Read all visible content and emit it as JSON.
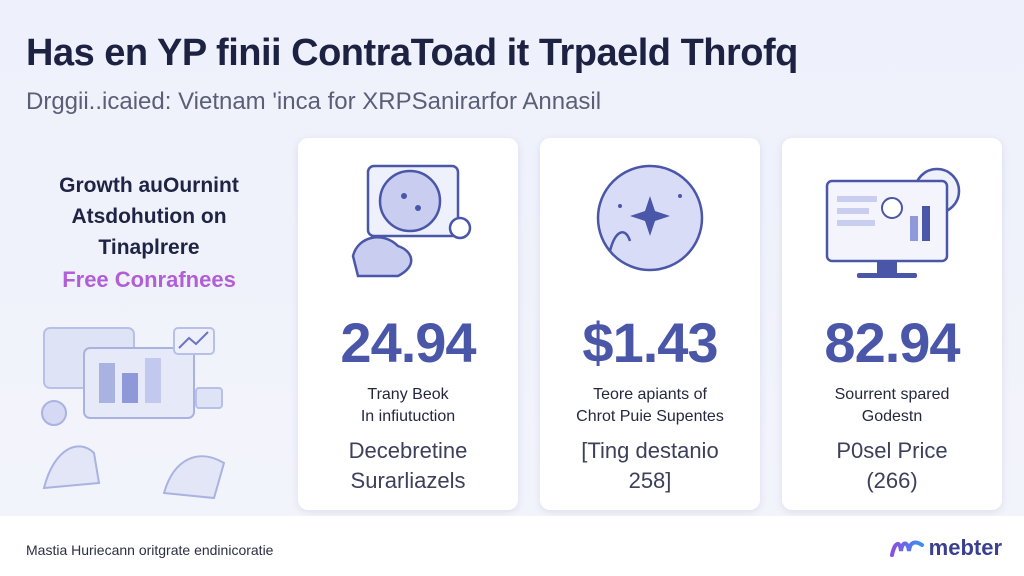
{
  "header": {
    "title": "Has en YP finii ContraToad it Trpaeld Throfq",
    "subtitle": "Drggii..icaied: Vietnam  'inca for XRPSanirarfor Annasil"
  },
  "left_panel": {
    "lines": [
      "Growth auOurnint",
      "Atsdohution on",
      "Tinaplrere"
    ],
    "accent": "Free Conrafnees"
  },
  "cards": [
    {
      "icon": "globe-chat-icon",
      "value": "24.94",
      "label": [
        "Trany Beok",
        "In infiutuction"
      ],
      "sub": [
        "Decebretine",
        "Surarliazels"
      ]
    },
    {
      "icon": "globe-sparkle-icon",
      "value": "$1.43",
      "label": [
        "Teore apiants of",
        "Chrot Puie Supentes"
      ],
      "sub": [
        "[Ting destanio",
        "258]"
      ]
    },
    {
      "icon": "monitor-chart-icon",
      "value": "82.94",
      "label": [
        "Sourrent spared",
        "Godestn"
      ],
      "sub": [
        "P0sel Price",
        "(266)"
      ]
    }
  ],
  "footer": {
    "text": "Mastia Huriecann oritgrate endinicoratie",
    "brand": "mebter"
  },
  "colors": {
    "accent": "#4a56a8",
    "highlight": "#b05fd6",
    "brand_gradient": [
      "#8a4fe0",
      "#3a8ff0"
    ]
  }
}
